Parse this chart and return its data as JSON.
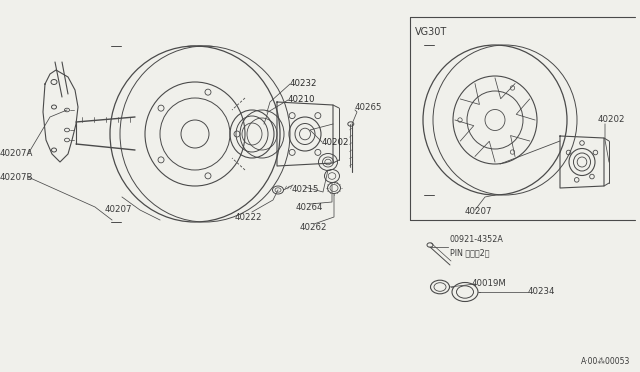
{
  "bg_color": "#f0f0eb",
  "line_color": "#4a4a4a",
  "xlim": [
    0,
    6.4
  ],
  "ylim": [
    0,
    3.72
  ],
  "ref_code": "A·00⁂00053"
}
